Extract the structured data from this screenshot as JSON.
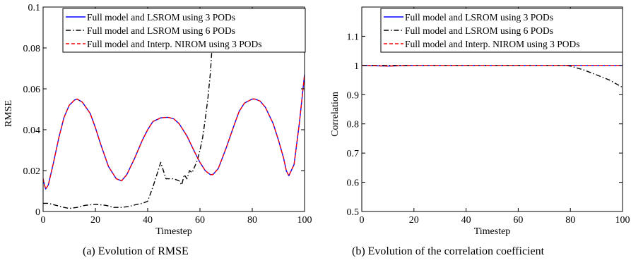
{
  "captions": {
    "a": "(a)  Evolution of RMSE",
    "b": "(b)  Evolution of the correlation coefficient"
  },
  "chart_data": [
    {
      "type": "line",
      "xlabel": "Timestep",
      "ylabel": "RMSE",
      "xlim": [
        0,
        100
      ],
      "ylim": [
        0,
        0.1
      ],
      "xticks": [
        0,
        20,
        40,
        60,
        80,
        100
      ],
      "yticks": [
        0,
        0.02,
        0.04,
        0.06,
        0.08,
        0.1
      ],
      "xtick_labels": [
        "0",
        "20",
        "40",
        "60",
        "80",
        "100"
      ],
      "ytick_labels": [
        "0",
        "0.02",
        "0.04",
        "0.06",
        "0.08",
        "0.1"
      ],
      "legend_position": "top",
      "series": [
        {
          "name": "Full model and LSROM using 3 PODs",
          "color": "#0000ff",
          "dash": "solid",
          "x": [
            0,
            0.5,
            1,
            2,
            4,
            6,
            8,
            10,
            12,
            13,
            15,
            18,
            20,
            22,
            25,
            28,
            30,
            32,
            35,
            38,
            40,
            42,
            45,
            47,
            48,
            50,
            52,
            55,
            58,
            60,
            62,
            64,
            65,
            67,
            70,
            73,
            75,
            77,
            80,
            81,
            83,
            85,
            88,
            90,
            92,
            93,
            94,
            96,
            98,
            100
          ],
          "y": [
            0.016,
            0.013,
            0.011,
            0.013,
            0.024,
            0.036,
            0.046,
            0.052,
            0.0545,
            0.055,
            0.0535,
            0.048,
            0.041,
            0.033,
            0.022,
            0.016,
            0.015,
            0.018,
            0.026,
            0.035,
            0.04,
            0.044,
            0.0458,
            0.046,
            0.046,
            0.0453,
            0.043,
            0.037,
            0.029,
            0.024,
            0.02,
            0.018,
            0.0181,
            0.021,
            0.031,
            0.042,
            0.049,
            0.053,
            0.055,
            0.055,
            0.054,
            0.051,
            0.043,
            0.035,
            0.026,
            0.02,
            0.0175,
            0.023,
            0.043,
            0.067
          ]
        },
        {
          "name": "Full model and LSROM using 6 PODs",
          "color": "#000000",
          "dash": "dashdot",
          "x": [
            0,
            2,
            5,
            8,
            10,
            13,
            16,
            20,
            24,
            27,
            30,
            33,
            36,
            38,
            40,
            42,
            44,
            45,
            46,
            47,
            48,
            50,
            52,
            53,
            54,
            55,
            56,
            57,
            58,
            59,
            60,
            61,
            62,
            63,
            64,
            64.6
          ],
          "y": [
            0.004,
            0.004,
            0.003,
            0.002,
            0.0015,
            0.002,
            0.003,
            0.0035,
            0.003,
            0.002,
            0.002,
            0.0025,
            0.0035,
            0.004,
            0.005,
            0.012,
            0.02,
            0.024,
            0.02,
            0.016,
            0.016,
            0.016,
            0.015,
            0.013,
            0.018,
            0.016,
            0.02,
            0.019,
            0.022,
            0.025,
            0.03,
            0.036,
            0.045,
            0.055,
            0.068,
            0.08
          ]
        },
        {
          "name": "Full model and Interp. NIROM using 3 PODs",
          "color": "#ff0000",
          "dash": "dashed",
          "x": [
            0,
            0.5,
            1,
            2,
            4,
            6,
            8,
            10,
            12,
            13,
            15,
            18,
            20,
            22,
            25,
            28,
            30,
            32,
            35,
            38,
            40,
            42,
            45,
            47,
            48,
            50,
            52,
            55,
            58,
            60,
            62,
            64,
            65,
            67,
            70,
            73,
            75,
            77,
            80,
            81,
            83,
            85,
            88,
            90,
            92,
            93,
            94,
            96,
            98,
            100
          ],
          "y": [
            0.016,
            0.013,
            0.011,
            0.013,
            0.024,
            0.036,
            0.046,
            0.052,
            0.0545,
            0.055,
            0.0535,
            0.048,
            0.041,
            0.033,
            0.022,
            0.016,
            0.015,
            0.018,
            0.026,
            0.035,
            0.04,
            0.044,
            0.0458,
            0.046,
            0.046,
            0.0453,
            0.043,
            0.037,
            0.029,
            0.024,
            0.02,
            0.018,
            0.0181,
            0.021,
            0.031,
            0.042,
            0.049,
            0.053,
            0.055,
            0.055,
            0.054,
            0.051,
            0.043,
            0.035,
            0.026,
            0.02,
            0.0175,
            0.023,
            0.043,
            0.067
          ]
        }
      ]
    },
    {
      "type": "line",
      "xlabel": "Timestep",
      "ylabel": "Correlation",
      "xlim": [
        0,
        100
      ],
      "ylim": [
        0.5,
        1.2
      ],
      "xticks": [
        0,
        20,
        40,
        60,
        80,
        100
      ],
      "yticks": [
        0.5,
        0.6,
        0.7,
        0.8,
        0.9,
        1,
        1.1
      ],
      "xtick_labels": [
        "0",
        "20",
        "40",
        "60",
        "80",
        "100"
      ],
      "ytick_labels": [
        "0.5",
        "0.6",
        "0.7",
        "0.8",
        "0.9",
        "1",
        "1.1"
      ],
      "legend_position": "top",
      "series": [
        {
          "name": "Full model and LSROM using 3 PODs",
          "color": "#0000ff",
          "dash": "solid",
          "x": [
            0,
            5,
            10,
            20,
            100
          ],
          "y": [
            1.0,
            0.999,
            0.998,
            1.0,
            1.0
          ]
        },
        {
          "name": "Full model and LSROM using 6 PODs",
          "color": "#000000",
          "dash": "dashdot",
          "x": [
            0,
            20,
            40,
            60,
            78,
            80,
            85,
            90,
            95,
            100
          ],
          "y": [
            1.0,
            1.0,
            1.0,
            1.0,
            1.0,
            0.998,
            0.985,
            0.968,
            0.95,
            0.925
          ]
        },
        {
          "name": "Full model and Interp. NIROM using 3 PODs",
          "color": "#ff0000",
          "dash": "dashed",
          "x": [
            0,
            5,
            10,
            20,
            100
          ],
          "y": [
            1.0,
            0.999,
            0.998,
            1.0,
            1.0
          ]
        }
      ]
    }
  ]
}
